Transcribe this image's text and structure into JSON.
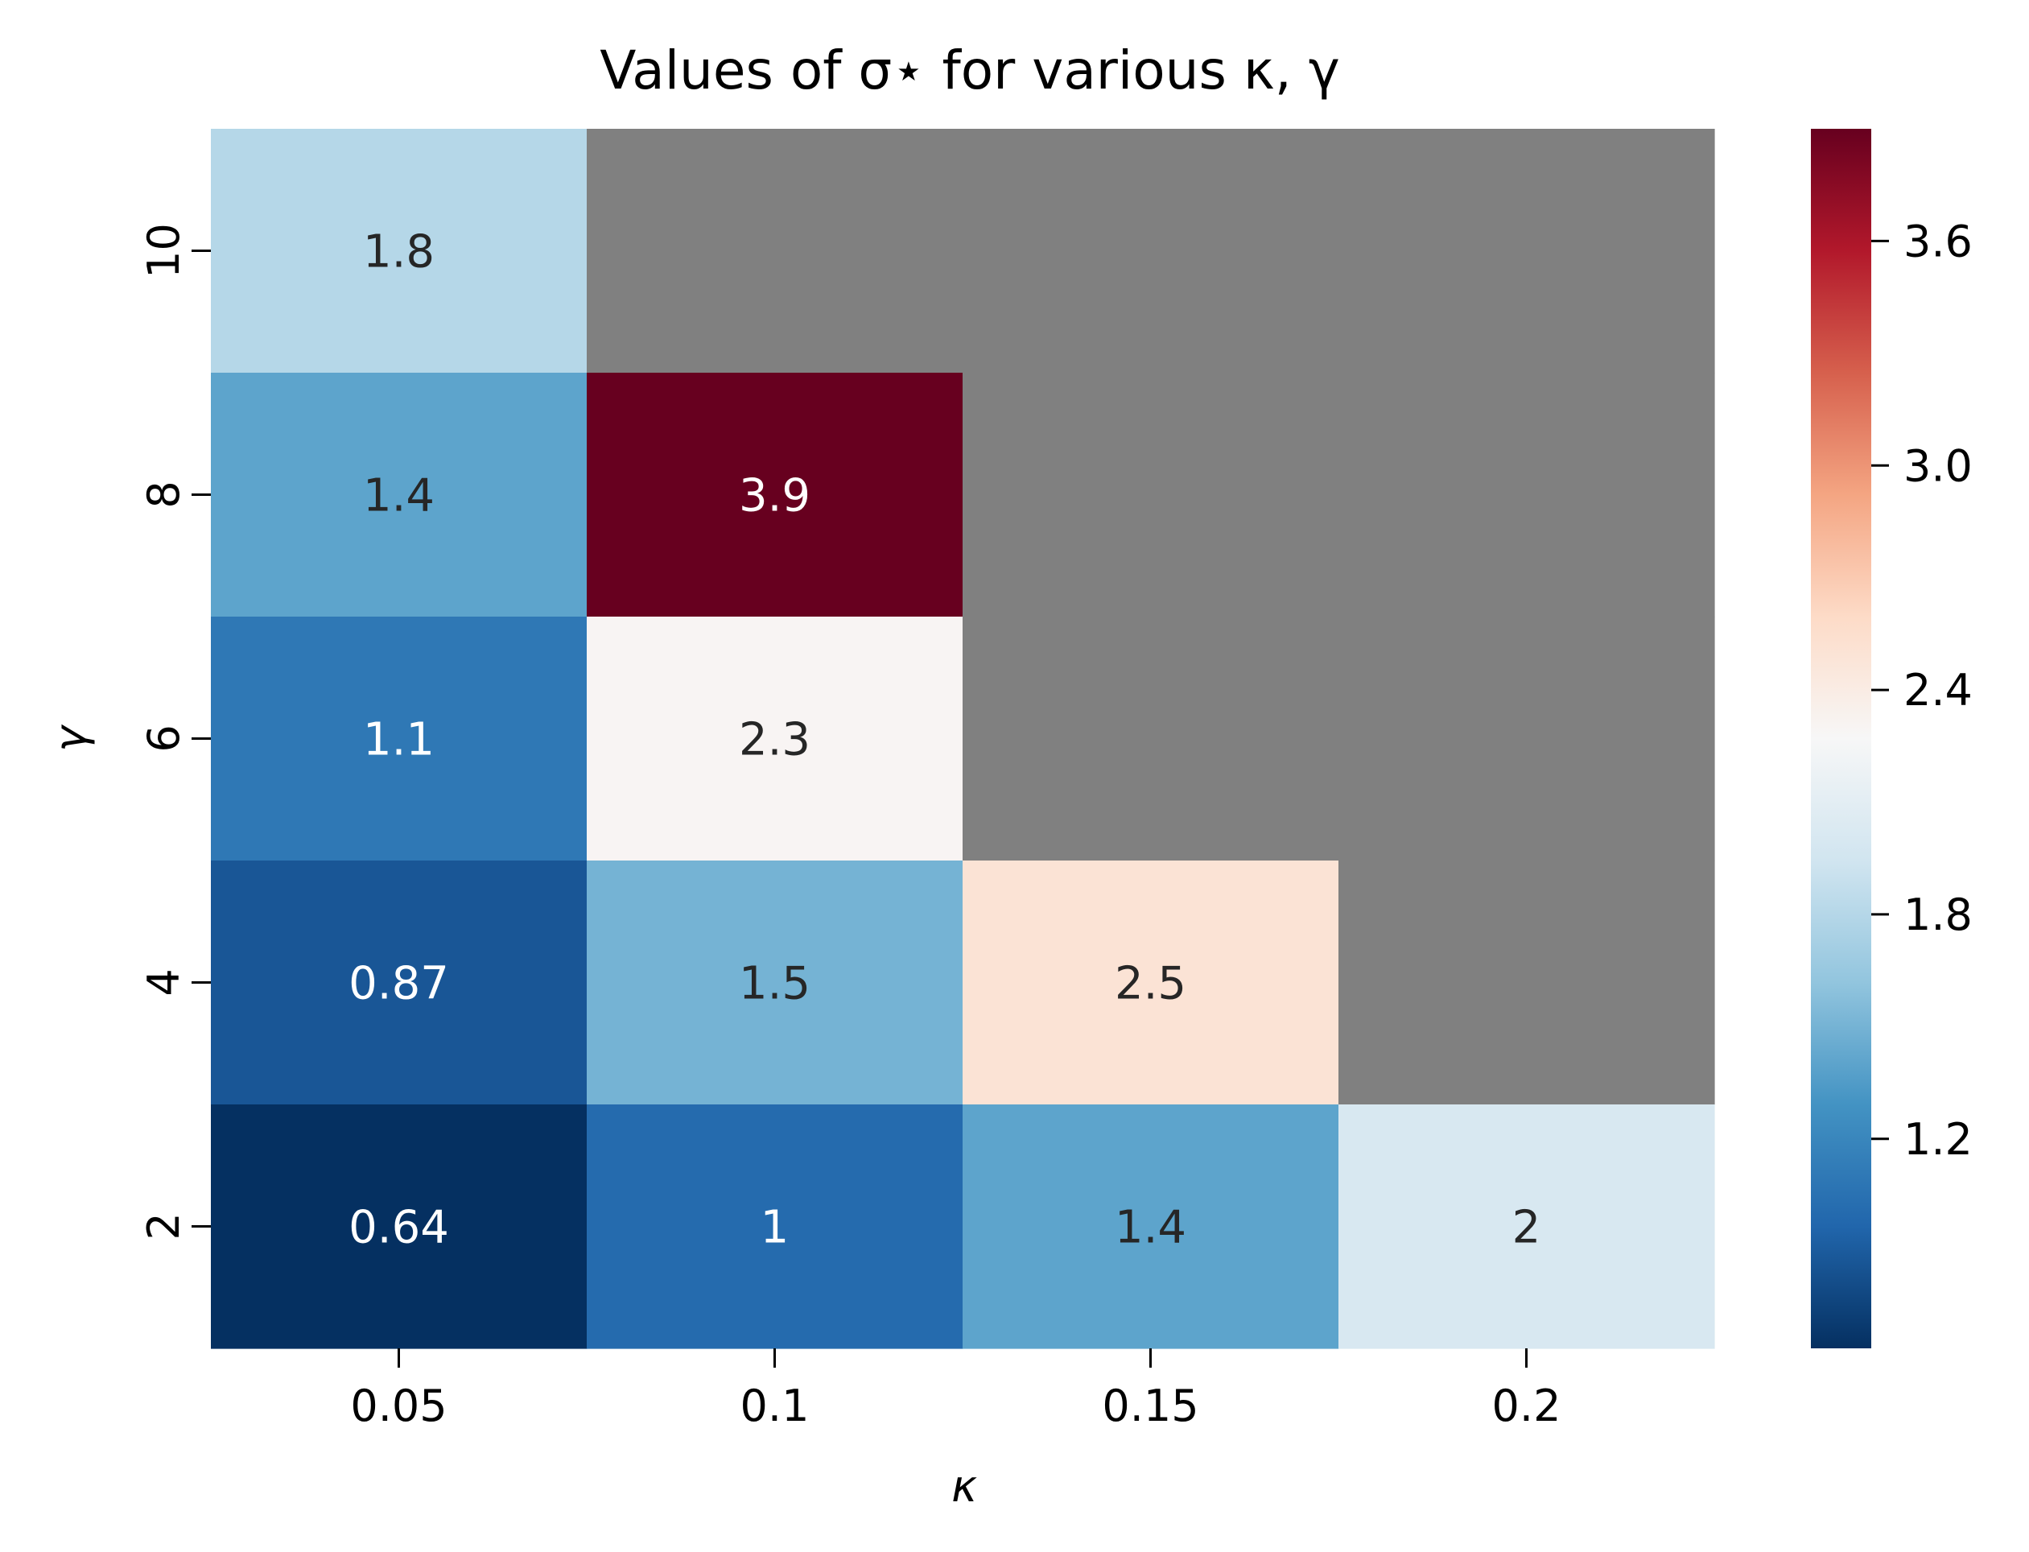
{
  "chart_data": {
    "type": "heatmap",
    "title": "Values of σ⋆ for various κ, γ",
    "xlabel": "κ",
    "ylabel": "γ",
    "x_categories": [
      "0.05",
      "0.1",
      "0.15",
      "0.2"
    ],
    "y_categories": [
      "10",
      "8",
      "6",
      "4",
      "2"
    ],
    "cells": [
      [
        1.8,
        null,
        null,
        null
      ],
      [
        1.4,
        3.9,
        null,
        null
      ],
      [
        1.1,
        2.3,
        null,
        null
      ],
      [
        0.87,
        1.5,
        2.5,
        null
      ],
      [
        0.64,
        1,
        1.4,
        2
      ]
    ],
    "cell_labels": [
      [
        "1.8",
        "",
        "",
        ""
      ],
      [
        "1.4",
        "3.9",
        "",
        ""
      ],
      [
        "1.1",
        "2.3",
        "",
        ""
      ],
      [
        "0.87",
        "1.5",
        "2.5",
        ""
      ],
      [
        "0.64",
        "1",
        "1.4",
        "2"
      ]
    ],
    "missing_color": "#808080",
    "colormap": "RdBu_r",
    "colorbar": {
      "vmin": 0.64,
      "vmax": 3.9,
      "ticks": [
        1.2,
        1.8,
        2.4,
        3.0,
        3.6
      ],
      "tick_labels": [
        "1.2",
        "1.8",
        "2.4",
        "3.0",
        "3.6"
      ]
    },
    "grid": false
  }
}
